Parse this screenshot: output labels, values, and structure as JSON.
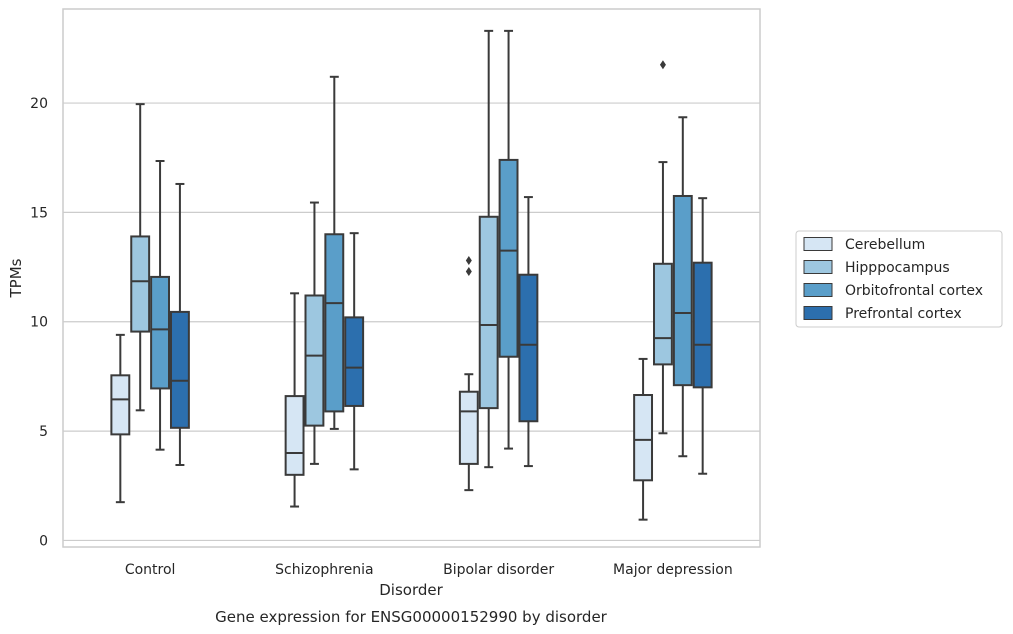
{
  "chart_data": {
    "type": "box",
    "title": "",
    "caption": "Gene expression for ENSG00000152990 by disorder",
    "xlabel": "Disorder",
    "ylabel": "TPMs",
    "ylim": [
      -0.3,
      24.3
    ],
    "yticks": [
      0,
      5,
      10,
      15,
      20
    ],
    "grid": "horizontal",
    "legend_position": "right",
    "categories": [
      "Control",
      "Schizophrenia",
      "Bipolar disorder",
      "Major depression"
    ],
    "series": [
      {
        "name": "Cerebellum",
        "color": "#d6e6f4",
        "boxes": [
          {
            "whislo": 1.75,
            "q1": 4.85,
            "med": 6.45,
            "q3": 7.55,
            "whishi": 9.4,
            "fliers": []
          },
          {
            "whislo": 1.55,
            "q1": 3.0,
            "med": 4.0,
            "q3": 6.6,
            "whishi": 11.3,
            "fliers": []
          },
          {
            "whislo": 2.3,
            "q1": 3.5,
            "med": 5.9,
            "q3": 6.8,
            "whishi": 7.6,
            "fliers": [
              12.3,
              12.8
            ]
          },
          {
            "whislo": 0.95,
            "q1": 2.75,
            "med": 4.6,
            "q3": 6.65,
            "whishi": 8.3,
            "fliers": []
          }
        ]
      },
      {
        "name": "Hipppocampus",
        "color": "#9dc7e0",
        "boxes": [
          {
            "whislo": 5.95,
            "q1": 9.55,
            "med": 11.85,
            "q3": 13.9,
            "whishi": 19.95,
            "fliers": []
          },
          {
            "whislo": 3.5,
            "q1": 5.25,
            "med": 8.45,
            "q3": 11.2,
            "whishi": 15.45,
            "fliers": []
          },
          {
            "whislo": 3.35,
            "q1": 6.05,
            "med": 9.85,
            "q3": 14.8,
            "whishi": 23.3,
            "fliers": []
          },
          {
            "whislo": 4.9,
            "q1": 8.05,
            "med": 9.25,
            "q3": 12.65,
            "whishi": 17.3,
            "fliers": [
              21.75
            ]
          }
        ]
      },
      {
        "name": "Orbitofrontal cortex",
        "color": "#5a9ec9",
        "boxes": [
          {
            "whislo": 4.15,
            "q1": 6.95,
            "med": 9.65,
            "q3": 12.05,
            "whishi": 17.35,
            "fliers": []
          },
          {
            "whislo": 5.1,
            "q1": 5.9,
            "med": 10.85,
            "q3": 14.0,
            "whishi": 21.2,
            "fliers": []
          },
          {
            "whislo": 4.2,
            "q1": 8.4,
            "med": 13.25,
            "q3": 17.4,
            "whishi": 23.3,
            "fliers": []
          },
          {
            "whislo": 3.85,
            "q1": 7.1,
            "med": 10.4,
            "q3": 15.75,
            "whishi": 19.35,
            "fliers": []
          }
        ]
      },
      {
        "name": "Prefrontal cortex",
        "color": "#2c6fae",
        "boxes": [
          {
            "whislo": 3.45,
            "q1": 5.15,
            "med": 7.3,
            "q3": 10.45,
            "whishi": 16.3,
            "fliers": []
          },
          {
            "whislo": 3.25,
            "q1": 6.15,
            "med": 7.9,
            "q3": 10.2,
            "whishi": 14.05,
            "fliers": []
          },
          {
            "whislo": 3.4,
            "q1": 5.45,
            "med": 8.95,
            "q3": 12.15,
            "whishi": 15.7,
            "fliers": []
          },
          {
            "whislo": 3.05,
            "q1": 7.0,
            "med": 8.95,
            "q3": 12.7,
            "whishi": 15.65,
            "fliers": []
          }
        ]
      }
    ]
  }
}
